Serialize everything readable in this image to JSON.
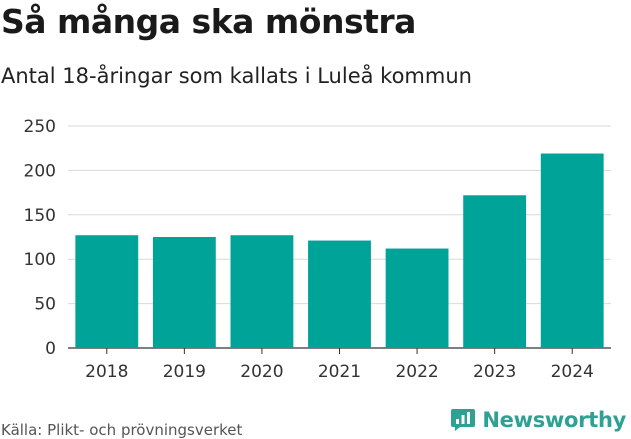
{
  "header": {
    "title": "Så många ska mönstra",
    "subtitle": "Antal 18-åringar som kallats i Luleå kommun"
  },
  "footer": {
    "source": "Källa: Plikt- och prövningsverket",
    "brand": "Newsworthy",
    "brand_icon": "bar-chart-icon"
  },
  "colors": {
    "bar": "#00a398",
    "grid": "#d9d9d9",
    "brand": "#2ea193"
  },
  "chart_data": {
    "type": "bar",
    "title": "Så många ska mönstra",
    "subtitle": "Antal 18-åringar som kallats i Luleå kommun",
    "categories": [
      "2018",
      "2019",
      "2020",
      "2021",
      "2022",
      "2023",
      "2024"
    ],
    "values": [
      127,
      125,
      127,
      121,
      112,
      172,
      219
    ],
    "ylim": [
      0,
      250
    ],
    "yticks": [
      0,
      50,
      100,
      150,
      200,
      250
    ],
    "grid": true,
    "legend": "none"
  }
}
